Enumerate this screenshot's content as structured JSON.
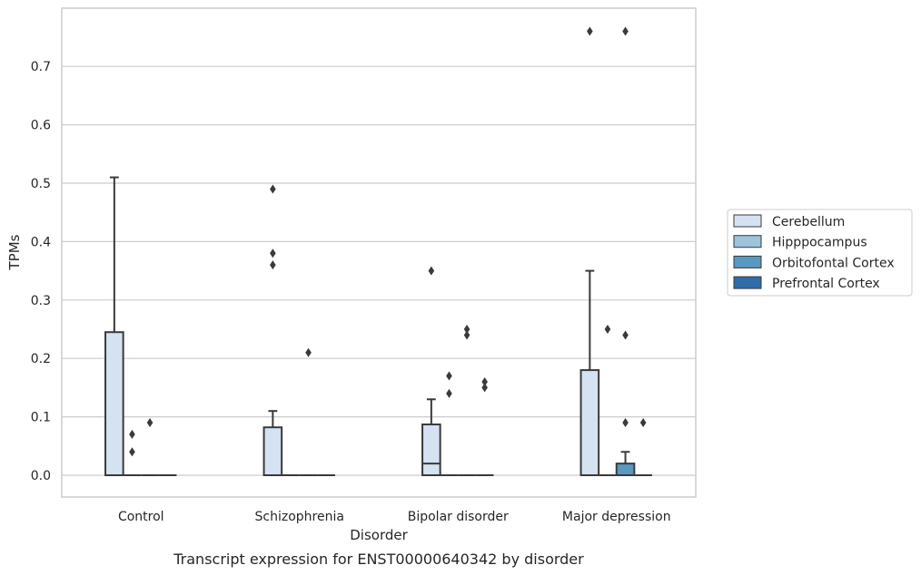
{
  "chart_data": {
    "type": "box",
    "title": "",
    "caption": "Transcript expression for ENST00000640342 by disorder",
    "xlabel": "Disorder",
    "ylabel": "TPMs",
    "ylim": [
      -0.037,
      0.8
    ],
    "yticks": [
      0.0,
      0.1,
      0.2,
      0.3,
      0.4,
      0.5,
      0.6,
      0.7
    ],
    "ytick_labels": [
      "0.0",
      "0.1",
      "0.2",
      "0.3",
      "0.4",
      "0.5",
      "0.6",
      "0.7"
    ],
    "grid": "horizontal",
    "legend_position": "right",
    "categories": [
      "Control",
      "Schizophrenia",
      "Bipolar disorder",
      "Major depression"
    ],
    "series": [
      {
        "name": "Cerebellum",
        "color": "#d4e2f1",
        "boxes": [
          {
            "q1": 0.0,
            "median": 0.0,
            "q3": 0.245,
            "whisker_low": 0.0,
            "whisker_high": 0.51,
            "outliers": []
          },
          {
            "q1": 0.0,
            "median": 0.0,
            "q3": 0.082,
            "whisker_low": 0.0,
            "whisker_high": 0.11,
            "outliers": [
              0.36,
              0.38,
              0.49
            ]
          },
          {
            "q1": 0.0,
            "median": 0.02,
            "q3": 0.087,
            "whisker_low": 0.0,
            "whisker_high": 0.13,
            "outliers": [
              0.35
            ]
          },
          {
            "q1": 0.0,
            "median": 0.0,
            "q3": 0.18,
            "whisker_low": 0.0,
            "whisker_high": 0.35,
            "outliers": [
              0.76
            ]
          }
        ]
      },
      {
        "name": "Hipppocampus",
        "color": "#9dc3dd",
        "boxes": [
          {
            "q1": 0.0,
            "median": 0.0,
            "q3": 0.0,
            "whisker_low": 0.0,
            "whisker_high": 0.0,
            "outliers": [
              0.04,
              0.07
            ]
          },
          {
            "q1": 0.0,
            "median": 0.0,
            "q3": 0.0,
            "whisker_low": 0.0,
            "whisker_high": 0.0,
            "outliers": []
          },
          {
            "q1": 0.0,
            "median": 0.0,
            "q3": 0.0,
            "whisker_low": 0.0,
            "whisker_high": 0.0,
            "outliers": [
              0.14,
              0.17
            ]
          },
          {
            "q1": 0.0,
            "median": 0.0,
            "q3": 0.0,
            "whisker_low": 0.0,
            "whisker_high": 0.0,
            "outliers": [
              0.25
            ]
          }
        ]
      },
      {
        "name": "Orbitofontal Cortex",
        "color": "#5a97c2",
        "boxes": [
          {
            "q1": 0.0,
            "median": 0.0,
            "q3": 0.0,
            "whisker_low": 0.0,
            "whisker_high": 0.0,
            "outliers": [
              0.09
            ]
          },
          {
            "q1": 0.0,
            "median": 0.0,
            "q3": 0.0,
            "whisker_low": 0.0,
            "whisker_high": 0.0,
            "outliers": [
              0.21
            ]
          },
          {
            "q1": 0.0,
            "median": 0.0,
            "q3": 0.0,
            "whisker_low": 0.0,
            "whisker_high": 0.0,
            "outliers": [
              0.24,
              0.25
            ]
          },
          {
            "q1": 0.0,
            "median": 0.0,
            "q3": 0.02,
            "whisker_low": 0.0,
            "whisker_high": 0.04,
            "outliers": [
              0.09,
              0.24,
              0.76
            ]
          }
        ]
      },
      {
        "name": "Prefrontal Cortex",
        "color": "#2f6ca8",
        "boxes": [
          {
            "q1": 0.0,
            "median": 0.0,
            "q3": 0.0,
            "whisker_low": 0.0,
            "whisker_high": 0.0,
            "outliers": []
          },
          {
            "q1": 0.0,
            "median": 0.0,
            "q3": 0.0,
            "whisker_low": 0.0,
            "whisker_high": 0.0,
            "outliers": []
          },
          {
            "q1": 0.0,
            "median": 0.0,
            "q3": 0.0,
            "whisker_low": 0.0,
            "whisker_high": 0.0,
            "outliers": [
              0.15,
              0.16
            ]
          },
          {
            "q1": 0.0,
            "median": 0.0,
            "q3": 0.0,
            "whisker_low": 0.0,
            "whisker_high": 0.0,
            "outliers": [
              0.09
            ]
          }
        ]
      }
    ]
  }
}
